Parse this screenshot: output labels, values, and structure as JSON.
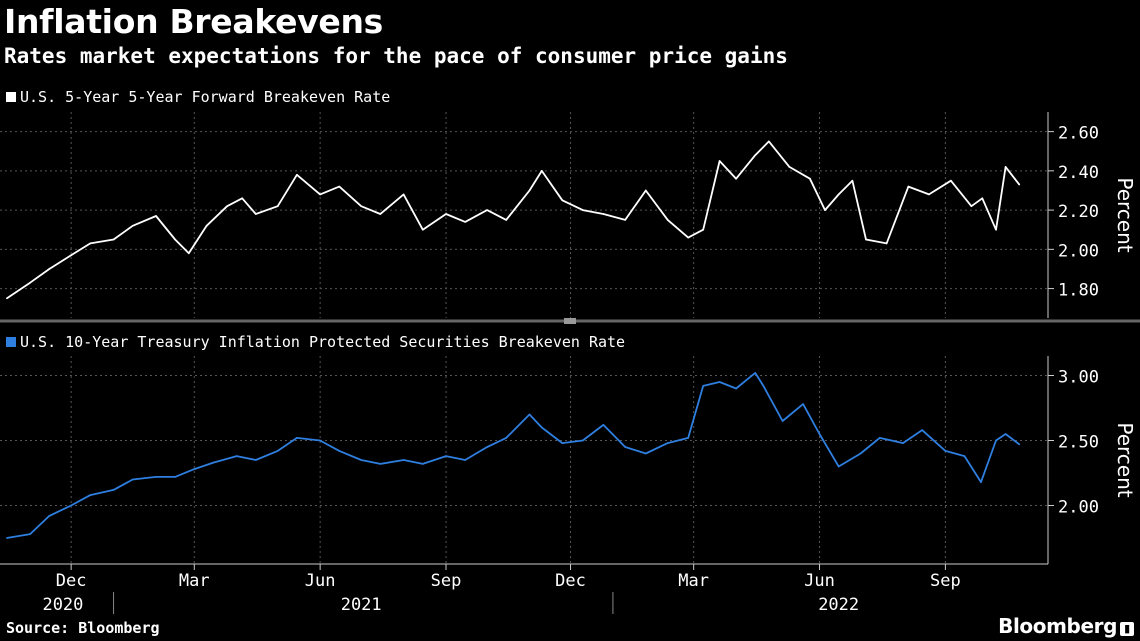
{
  "title": "Inflation Breakevens",
  "subtitle": "Rates market expectations for the pace of consumer price gains",
  "colors": {
    "background": "#000000",
    "series1": "#ffffff",
    "series2": "#2e7fe0",
    "grid": "#555555"
  },
  "source": "Source: Bloomberg",
  "brand": "Bloomberg",
  "chart_data": [
    {
      "type": "line",
      "title": "U.S. 5-Year 5-Year Forward Breakeven Rate",
      "legend": "U.S. 5-Year 5-Year Forward Breakeven Rate",
      "ylabel": "Percent",
      "ylim": [
        1.65,
        2.7
      ],
      "yticks": [
        1.8,
        2.0,
        2.2,
        2.4,
        2.6
      ],
      "ytick_labels": [
        "1.80",
        "2.00",
        "2.20",
        "2.40",
        "2.60"
      ],
      "grid": true,
      "x": [
        "2020-10-15",
        "2020-11-01",
        "2020-11-15",
        "2020-12-01",
        "2020-12-15",
        "2021-01-01",
        "2021-01-15",
        "2021-02-01",
        "2021-02-15",
        "2021-02-25",
        "2021-03-10",
        "2021-03-25",
        "2021-04-05",
        "2021-04-15",
        "2021-05-01",
        "2021-05-15",
        "2021-06-01",
        "2021-06-15",
        "2021-07-01",
        "2021-07-15",
        "2021-08-01",
        "2021-08-15",
        "2021-09-01",
        "2021-09-15",
        "2021-10-01",
        "2021-10-15",
        "2021-11-01",
        "2021-11-10",
        "2021-11-25",
        "2021-12-10",
        "2021-12-25",
        "2022-01-10",
        "2022-01-25",
        "2022-02-10",
        "2022-02-25",
        "2022-03-08",
        "2022-03-20",
        "2022-04-01",
        "2022-04-15",
        "2022-04-25",
        "2022-05-10",
        "2022-05-25",
        "2022-06-05",
        "2022-06-15",
        "2022-06-25",
        "2022-07-05",
        "2022-07-20",
        "2022-08-05",
        "2022-08-20",
        "2022-09-05",
        "2022-09-20",
        "2022-09-28",
        "2022-10-08",
        "2022-10-15",
        "2022-10-25"
      ],
      "values": [
        1.75,
        1.83,
        1.9,
        1.97,
        2.03,
        2.05,
        2.12,
        2.17,
        2.05,
        1.98,
        2.12,
        2.22,
        2.26,
        2.18,
        2.22,
        2.38,
        2.28,
        2.32,
        2.22,
        2.18,
        2.28,
        2.1,
        2.18,
        2.14,
        2.2,
        2.15,
        2.3,
        2.4,
        2.25,
        2.2,
        2.18,
        2.15,
        2.3,
        2.15,
        2.06,
        2.1,
        2.45,
        2.36,
        2.48,
        2.55,
        2.42,
        2.36,
        2.2,
        2.28,
        2.35,
        2.05,
        2.03,
        2.32,
        2.28,
        2.35,
        2.22,
        2.26,
        2.1,
        2.42,
        2.33
      ]
    },
    {
      "type": "line",
      "title": "U.S. 10-Year Treasury Inflation Protected Securities Breakeven Rate",
      "legend": "U.S. 10-Year Treasury Inflation Protected Securities Breakeven Rate",
      "ylabel": "Percent",
      "ylim": [
        1.55,
        3.15
      ],
      "yticks": [
        2.0,
        2.5,
        3.0
      ],
      "ytick_labels": [
        "2.00",
        "2.50",
        "3.00"
      ],
      "grid": true,
      "x": [
        "2020-10-15",
        "2020-11-01",
        "2020-11-15",
        "2020-12-01",
        "2020-12-15",
        "2021-01-01",
        "2021-01-15",
        "2021-02-01",
        "2021-02-15",
        "2021-03-01",
        "2021-03-15",
        "2021-04-01",
        "2021-04-15",
        "2021-05-01",
        "2021-05-15",
        "2021-06-01",
        "2021-06-15",
        "2021-07-01",
        "2021-07-15",
        "2021-08-01",
        "2021-08-15",
        "2021-09-01",
        "2021-09-15",
        "2021-10-01",
        "2021-10-15",
        "2021-11-01",
        "2021-11-10",
        "2021-11-25",
        "2021-12-10",
        "2021-12-25",
        "2022-01-10",
        "2022-01-25",
        "2022-02-10",
        "2022-02-25",
        "2022-03-08",
        "2022-03-20",
        "2022-04-01",
        "2022-04-15",
        "2022-04-21",
        "2022-05-05",
        "2022-05-20",
        "2022-06-01",
        "2022-06-15",
        "2022-07-01",
        "2022-07-15",
        "2022-08-01",
        "2022-08-15",
        "2022-09-01",
        "2022-09-15",
        "2022-09-27",
        "2022-10-08",
        "2022-10-15",
        "2022-10-25"
      ],
      "values": [
        1.75,
        1.78,
        1.92,
        2.0,
        2.08,
        2.12,
        2.2,
        2.22,
        2.22,
        2.28,
        2.33,
        2.38,
        2.35,
        2.42,
        2.52,
        2.5,
        2.42,
        2.35,
        2.32,
        2.35,
        2.32,
        2.38,
        2.35,
        2.45,
        2.52,
        2.7,
        2.6,
        2.48,
        2.5,
        2.62,
        2.45,
        2.4,
        2.48,
        2.52,
        2.92,
        2.95,
        2.9,
        3.02,
        2.92,
        2.65,
        2.78,
        2.55,
        2.3,
        2.4,
        2.52,
        2.48,
        2.58,
        2.42,
        2.38,
        2.18,
        2.5,
        2.55,
        2.47
      ]
    }
  ],
  "x_axis": {
    "months": [
      {
        "label": "Dec",
        "date": "2020-12-01"
      },
      {
        "label": "Mar",
        "date": "2021-03-01"
      },
      {
        "label": "Jun",
        "date": "2021-06-01"
      },
      {
        "label": "Sep",
        "date": "2021-09-01"
      },
      {
        "label": "Dec",
        "date": "2021-12-01"
      },
      {
        "label": "Mar",
        "date": "2022-03-01"
      },
      {
        "label": "Jun",
        "date": "2022-06-01"
      },
      {
        "label": "Sep",
        "date": "2022-09-01"
      }
    ],
    "years": [
      {
        "label": "2020",
        "date": "2020-11-25"
      },
      {
        "label": "2021",
        "date": "2021-07-01"
      },
      {
        "label": "2022",
        "date": "2022-06-15"
      }
    ],
    "year_dividers": [
      "2021-01-01",
      "2022-01-01"
    ],
    "range": [
      "2020-10-10",
      "2022-11-15"
    ]
  }
}
